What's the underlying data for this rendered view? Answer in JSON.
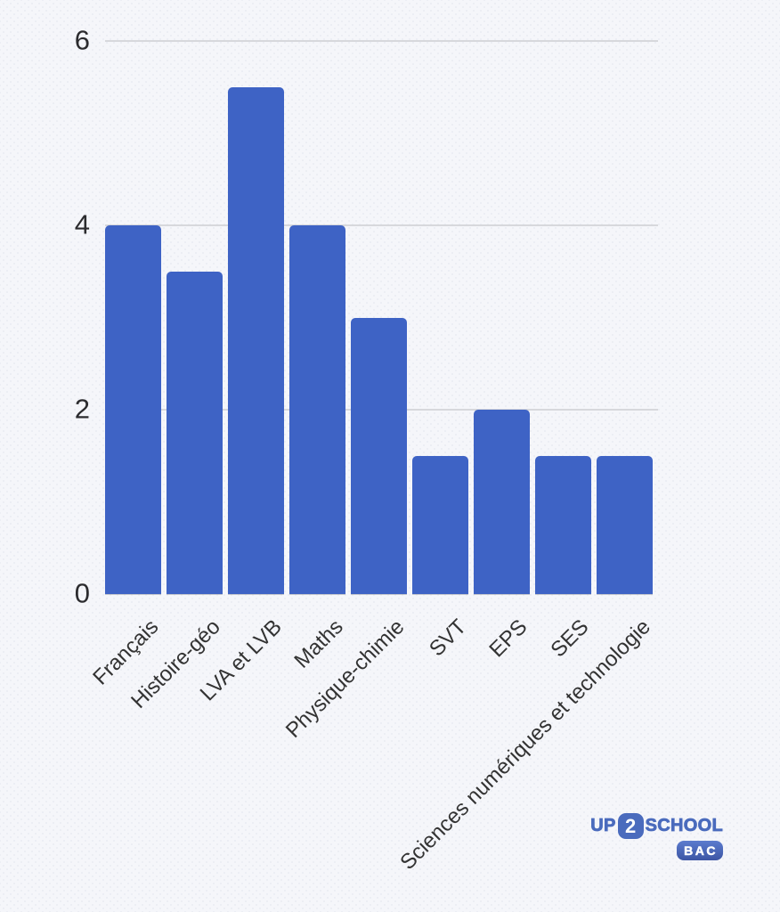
{
  "chart_data": {
    "type": "bar",
    "categories": [
      "Français",
      "Histoire-géo",
      "LVA et LVB",
      "Maths",
      "Physique-chimie",
      "SVT",
      "EPS",
      "SES",
      "Sciences numériques et technologie"
    ],
    "values": [
      4,
      3.5,
      5.5,
      4,
      3,
      1.5,
      2,
      1.5,
      1.5
    ],
    "title": "",
    "xlabel": "",
    "ylabel": "",
    "ylim": [
      0,
      6
    ],
    "yticks": [
      0,
      2,
      4,
      6
    ],
    "grid": true,
    "legend": false,
    "bar_color": "#3e63c5",
    "background": "#f5f6fa",
    "grid_color": "#d7d8dc",
    "tick_color": "#2b2b2e"
  },
  "logo": {
    "part1": "UP",
    "part2": "2",
    "part3": "SCHOOL",
    "badge": "BAC",
    "color": "#4a6bbd"
  }
}
